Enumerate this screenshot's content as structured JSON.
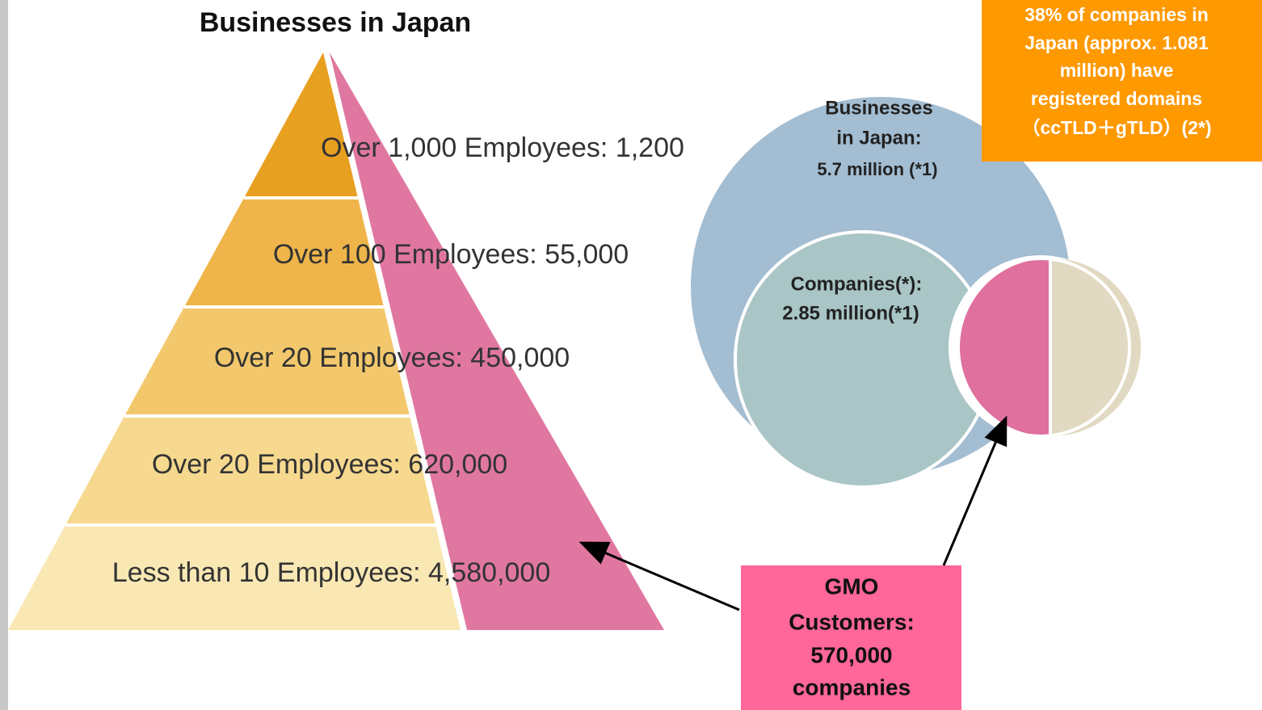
{
  "title": "Businesses in Japan",
  "pyramid": {
    "levels": [
      "Over 1,000 Employees: 1,200",
      "Over 100 Employees: 55,000",
      "Over 20 Employees: 450,000",
      "Over 20 Employees: 620,000",
      "Less than 10 Employees: 4,580,000"
    ]
  },
  "circles": {
    "businesses": {
      "lines": [
        "Businesses",
        "in Japan:",
        "5.7 million (*1)"
      ]
    },
    "companies": {
      "lines": [
        "Companies(*):",
        "2.85 million(*1)"
      ]
    }
  },
  "note": {
    "lines": [
      "38% of companies in",
      "Japan (approx. 1.081",
      "million) have",
      "registered domains",
      "（ccTLD＋gTLD）(2*)"
    ]
  },
  "callout": {
    "lines": [
      "GMO",
      "Customers:",
      "570,000",
      "companies"
    ]
  }
}
